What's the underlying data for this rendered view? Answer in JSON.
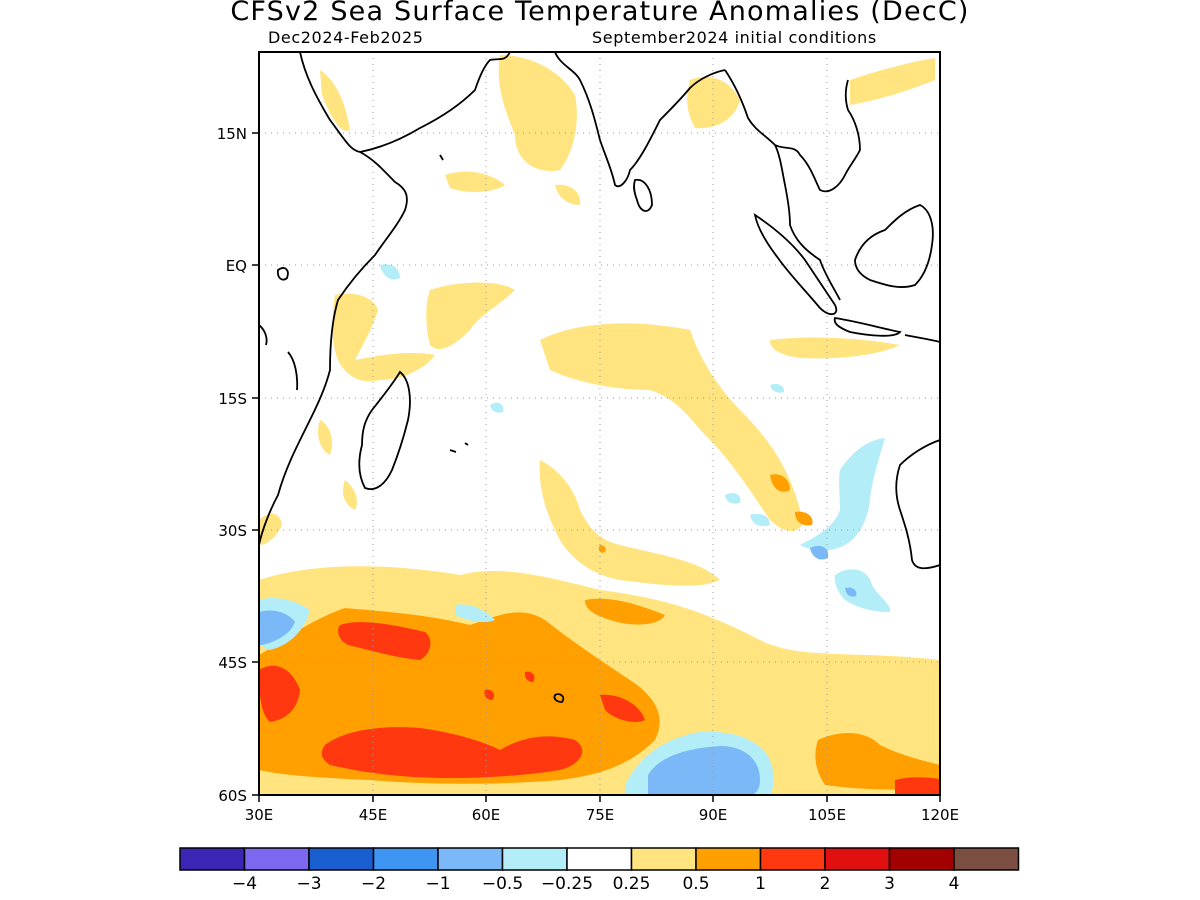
{
  "header": {
    "title": "CFSv2 Sea Surface Temperature Anomalies (DecC)",
    "period": "Dec2024-Feb2025",
    "init": "September2024 initial conditions"
  },
  "map": {
    "region": "Indian Ocean",
    "lon_range": [
      30,
      120
    ],
    "lat_range": [
      -60,
      24
    ],
    "lat_ticks": [
      {
        "value": 15,
        "label": "15N"
      },
      {
        "value": 0,
        "label": "EQ"
      },
      {
        "value": -15,
        "label": "15S"
      },
      {
        "value": -30,
        "label": "30S"
      },
      {
        "value": -45,
        "label": "45S"
      },
      {
        "value": -60,
        "label": "60S"
      }
    ],
    "lon_ticks": [
      {
        "value": 30,
        "label": "30E"
      },
      {
        "value": 45,
        "label": "45E"
      },
      {
        "value": 60,
        "label": "60E"
      },
      {
        "value": 75,
        "label": "75E"
      },
      {
        "value": 90,
        "label": "90E"
      },
      {
        "value": 105,
        "label": "105E"
      },
      {
        "value": 120,
        "label": "120E"
      }
    ],
    "grid": true
  },
  "colorbar": {
    "colors": [
      "#3b25b5",
      "#7b68ee",
      "#1a5fd0",
      "#3e95f2",
      "#7ab8f7",
      "#b3eef8",
      "#ffffff",
      "#ffe480",
      "#ffa000",
      "#ff3810",
      "#e01010",
      "#a30000",
      "#7a4f42"
    ],
    "labels": [
      "-4",
      "-3",
      "-2",
      "-1",
      "-0.5",
      "-0.25",
      "0.25",
      "0.5",
      "1",
      "2",
      "3",
      "4"
    ]
  }
}
